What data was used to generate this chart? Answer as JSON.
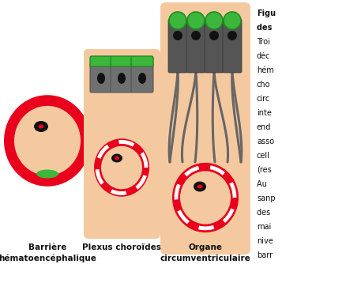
{
  "skin_color": "#F5C9A0",
  "red_color": "#E8001C",
  "green_color": "#3CB73C",
  "green_dark": "#228B22",
  "gray_cell": "#707070",
  "gray_dark": "#555555",
  "black_color": "#111111",
  "white_color": "#FFFFFF",
  "fig_bg": "#FFFFFF",
  "label1a": "Barrière",
  "label1b": "hématoencéphalique",
  "label2": "Plexus choroïdes",
  "label3a": "Organe",
  "label3b": "circumventriculaire",
  "right_lines": [
    "Figu",
    "des ",
    "Troi",
    "déc",
    "hém",
    "cho",
    "circ",
    "inte",
    "end",
    "asso",
    "cell",
    "(res",
    "Au ",
    "sanp",
    "des ",
    "mai",
    "nive",
    "barr"
  ],
  "right_bold": [
    true,
    true,
    false,
    false,
    false,
    false,
    false,
    false,
    false,
    false,
    false,
    false,
    false,
    false,
    false,
    false,
    false,
    false
  ]
}
